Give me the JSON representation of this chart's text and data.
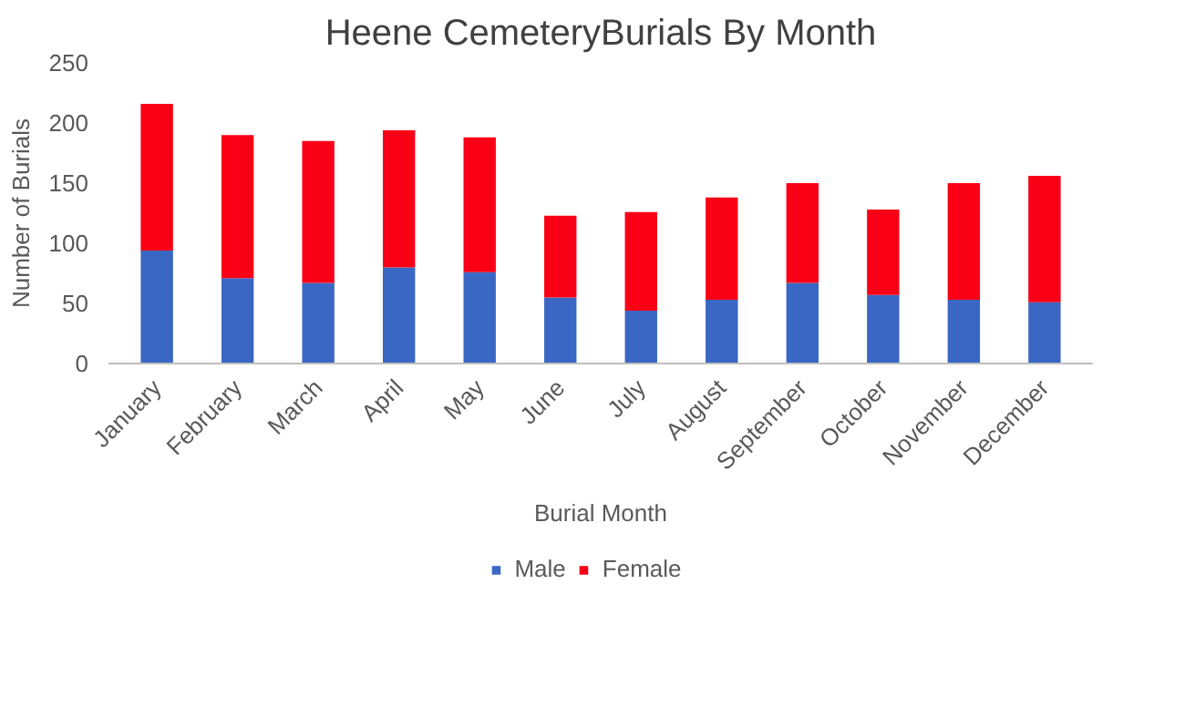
{
  "chart_data": {
    "type": "bar",
    "title": "Heene CemeteryBurials By Month",
    "xlabel": "Burial Month",
    "ylabel": "Number of Burials",
    "categories": [
      "January",
      "February",
      "March",
      "April",
      "May",
      "June",
      "July",
      "August",
      "September",
      "October",
      "November",
      "December"
    ],
    "series": [
      {
        "name": "Male",
        "color": "#3a67c4",
        "values": [
          94,
          71,
          67,
          80,
          76,
          55,
          44,
          53,
          67,
          57,
          53,
          51
        ]
      },
      {
        "name": "Female",
        "color": "#fa0016",
        "values": [
          122,
          119,
          118,
          114,
          112,
          68,
          82,
          85,
          83,
          71,
          97,
          105
        ]
      }
    ],
    "stacked": true,
    "ylim": [
      0,
      250
    ],
    "yticks": [
      0,
      50,
      100,
      150,
      200,
      250
    ],
    "grid": false,
    "legend": "bottom"
  }
}
